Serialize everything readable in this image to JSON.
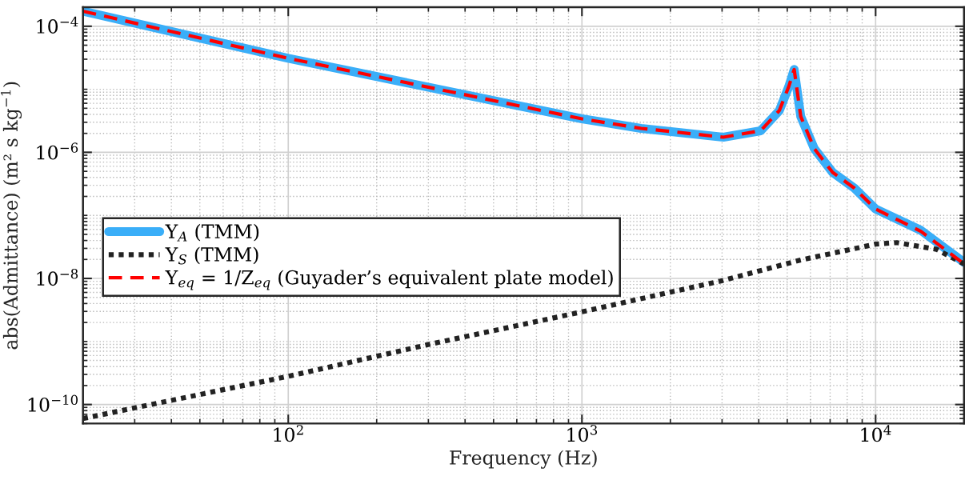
{
  "chart_data": {
    "type": "line",
    "xlabel": "Frequency (Hz)",
    "ylabel": "abs(Admittance) (m² s kg$^{−1}$)",
    "log": "xy",
    "grid": true,
    "legend": "left",
    "xlim": [
      20,
      20000
    ],
    "xticks": [
      {
        "value": 100,
        "label": "10$^{2}$"
      },
      {
        "value": 1000,
        "label": "10$^{3}$"
      },
      {
        "value": 10000,
        "label": "10$^{4}$"
      }
    ],
    "ylim": [
      5e-11,
      0.0002
    ],
    "yticks": [
      {
        "value": 1e-10,
        "label": "10$^{−10}$"
      },
      {
        "value": 1e-08,
        "label": "10$^{−8}$"
      },
      {
        "value": 1e-06,
        "label": "10$^{−6}$"
      },
      {
        "value": 0.0001,
        "label": "10$^{−4}$"
      }
    ],
    "series": [
      {
        "name": "Y$_{A}$ (TMM)",
        "color": "#3aaef8",
        "line_style": "solid",
        "x": [
          20,
          100,
          1000,
          1590,
          3030,
          4060,
          4700,
          5060,
          5280,
          5560,
          6180,
          7140,
          8470,
          10000,
          14250,
          20000
        ],
        "values": [
          0.000173,
          3.1e-05,
          3.4e-06,
          2.4e-06,
          1.74e-06,
          2.2e-06,
          4.6e-06,
          1.1e-05,
          2.06e-05,
          3.7e-06,
          1.15e-06,
          4.8e-07,
          2.7e-07,
          1.26e-07,
          5.8e-08,
          1.8e-08
        ]
      },
      {
        "name": "Y$_{S}$ (TMM)",
        "color": "#222222",
        "line_style": "dotted",
        "x": [
          20,
          100,
          305,
          1000,
          1950,
          2970,
          5560,
          10000,
          11800,
          16100,
          20000
        ],
        "values": [
          6e-11,
          2.8e-10,
          9.1e-10,
          2.95e-09,
          5.9e-09,
          9.1e-09,
          1.96e-08,
          3.5e-08,
          3.7e-08,
          2.9e-08,
          1.7e-08
        ]
      },
      {
        "name": "Y$_{eq}$ = 1/Z$_{eq}$ (Guyader’s equivalent plate model)",
        "color": "#ff0000",
        "line_style": "dashed",
        "x": [
          20,
          100,
          1000,
          1590,
          3030,
          4060,
          4700,
          5060,
          5280,
          5560,
          6180,
          7140,
          8470,
          10000,
          14250,
          20000
        ],
        "values": [
          0.000173,
          3.1e-05,
          3.4e-06,
          2.4e-06,
          1.74e-06,
          2.2e-06,
          4.6e-06,
          1.1e-05,
          2.06e-05,
          3.7e-06,
          1.15e-06,
          4.8e-07,
          2.7e-07,
          1.26e-07,
          5.6e-08,
          1.7e-08
        ]
      }
    ]
  }
}
